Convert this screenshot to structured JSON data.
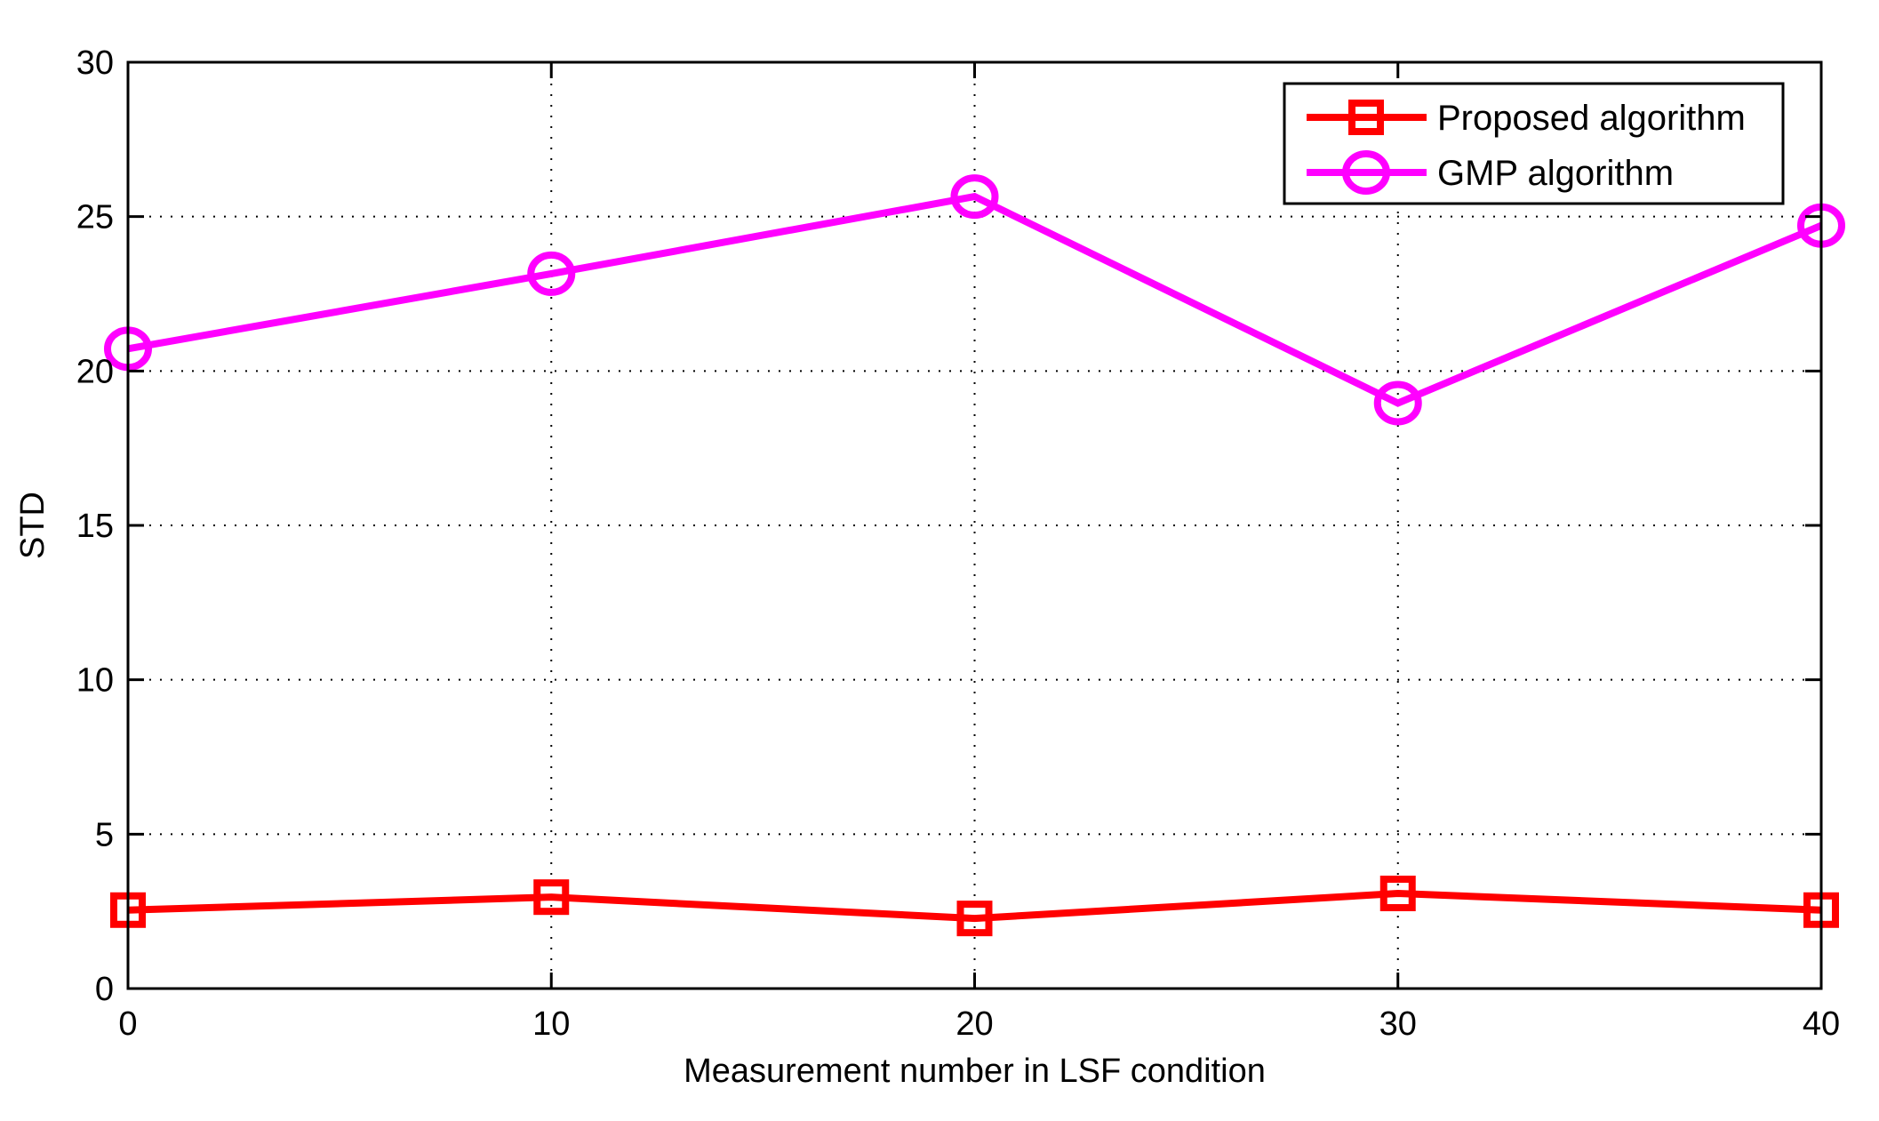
{
  "chart_data": {
    "type": "line",
    "title": "",
    "xlabel": "Measurement number in LSF condition",
    "ylabel": "STD",
    "x": [
      0,
      10,
      20,
      30,
      40
    ],
    "xlim": [
      0,
      40
    ],
    "ylim": [
      0,
      30
    ],
    "xticks": [
      0,
      10,
      20,
      30,
      40
    ],
    "yticks": [
      0,
      5,
      10,
      15,
      20,
      25,
      30
    ],
    "grid": true,
    "legend_position": "upper right",
    "series": [
      {
        "name": "Proposed algorithm",
        "color": "#ff0000",
        "marker": "square",
        "values": [
          2.54,
          2.96,
          2.27,
          3.08,
          2.54
        ]
      },
      {
        "name": "GMP algorithm",
        "color": "#ff00ff",
        "marker": "circle",
        "values": [
          20.72,
          23.15,
          25.65,
          18.96,
          24.71
        ]
      }
    ]
  }
}
